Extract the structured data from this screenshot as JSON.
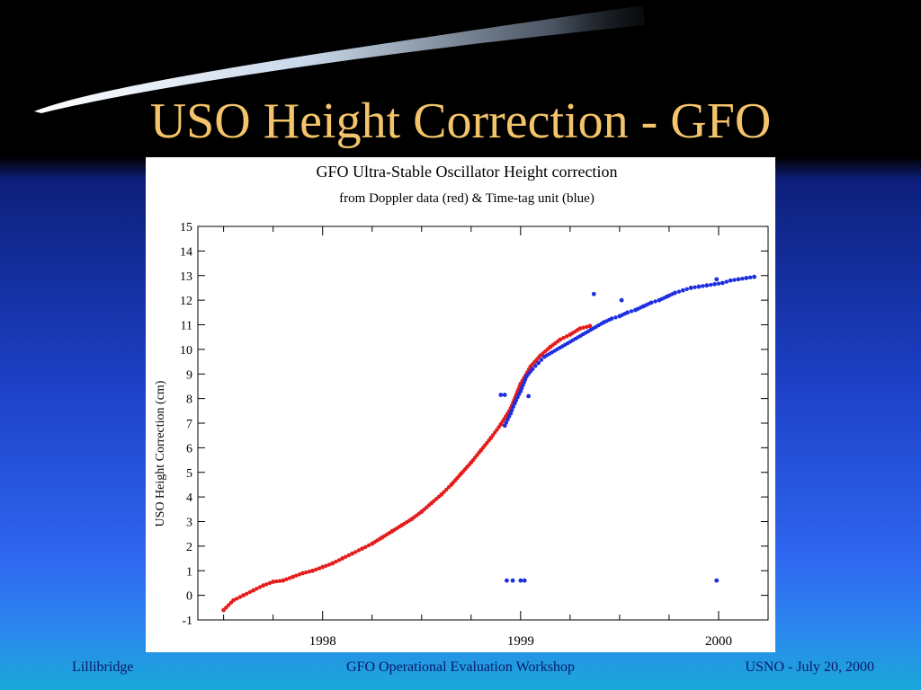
{
  "slide": {
    "title": "USO Height Correction - GFO",
    "footer_left": "Lillibridge",
    "footer_center": "GFO Operational Evaluation Workshop",
    "footer_right": "USNO - July 20, 2000"
  },
  "colors": {
    "title": "#f3c46a",
    "red_series": "#e51c1c",
    "blue_series": "#1c2ee0",
    "footer": "#0a1a6a"
  },
  "chart_data": {
    "type": "scatter",
    "title": "GFO Ultra-Stable Oscillator Height correction",
    "subtitle": "from Doppler data (red) & Time-tag unit (blue)",
    "xlabel": "",
    "ylabel": "USO Height Correction (cm)",
    "xlim": [
      1997.37,
      2000.25
    ],
    "ylim": [
      -1,
      15
    ],
    "yticks": [
      "-1",
      "0",
      "1",
      "2",
      "3",
      "4",
      "5",
      "6",
      "7",
      "8",
      "9",
      "10",
      "11",
      "12",
      "13",
      "14",
      "15"
    ],
    "xticks": [
      {
        "value": 1998.0,
        "label": "1998"
      },
      {
        "value": 1999.0,
        "label": "1999"
      },
      {
        "value": 2000.0,
        "label": "2000"
      }
    ],
    "grid": false,
    "series": [
      {
        "color": "red",
        "x": [
          1997.5,
          1997.55,
          1997.6,
          1997.65,
          1997.7,
          1997.75,
          1997.8,
          1997.85,
          1997.9,
          1997.95,
          1998.0,
          1998.05,
          1998.1,
          1998.15,
          1998.2,
          1998.25,
          1998.3,
          1998.35,
          1998.4,
          1998.45,
          1998.5,
          1998.55,
          1998.6,
          1998.65,
          1998.7,
          1998.75,
          1998.8,
          1998.85,
          1998.9,
          1998.95,
          1999.0,
          1999.05,
          1999.1,
          1999.15,
          1999.2,
          1999.25,
          1999.3,
          1999.35
        ],
        "y": [
          -0.6,
          -0.2,
          0.0,
          0.2,
          0.4,
          0.55,
          0.6,
          0.75,
          0.9,
          1.0,
          1.15,
          1.3,
          1.5,
          1.7,
          1.9,
          2.1,
          2.35,
          2.6,
          2.85,
          3.1,
          3.4,
          3.75,
          4.1,
          4.5,
          4.95,
          5.4,
          5.9,
          6.4,
          6.95,
          7.6,
          8.6,
          9.3,
          9.75,
          10.1,
          10.4,
          10.6,
          10.85,
          10.95
        ]
      },
      {
        "color": "blue",
        "x": [
          1998.92,
          1998.95,
          1998.97,
          1999.0,
          1999.03,
          1999.06,
          1999.09,
          1999.12,
          1999.42,
          1999.46,
          1999.5,
          1999.54,
          1999.58,
          1999.62,
          1999.66,
          1999.7,
          1999.74,
          1999.78,
          1999.82,
          1999.86,
          1999.9,
          1999.94,
          1999.98,
          2000.02,
          2000.06,
          2000.1,
          2000.14,
          2000.18
        ],
        "y": [
          6.9,
          7.4,
          7.8,
          8.3,
          8.9,
          9.2,
          9.45,
          9.7,
          11.1,
          11.25,
          11.35,
          11.5,
          11.6,
          11.75,
          11.9,
          12.0,
          12.15,
          12.3,
          12.4,
          12.5,
          12.55,
          12.6,
          12.65,
          12.7,
          12.8,
          12.85,
          12.9,
          12.95
        ]
      },
      {
        "color": "blue",
        "x": [
          1998.9,
          1998.92,
          1998.93,
          1998.96,
          1999.0,
          1999.02,
          1999.04,
          1999.37,
          1999.51,
          1999.99
        ],
        "y": [
          8.15,
          8.15,
          0.6,
          0.6,
          0.6,
          0.6,
          8.1,
          12.25,
          12.0,
          12.85
        ]
      },
      {
        "color": "blue",
        "x": [
          1999.99
        ],
        "y": [
          0.6
        ]
      }
    ]
  }
}
